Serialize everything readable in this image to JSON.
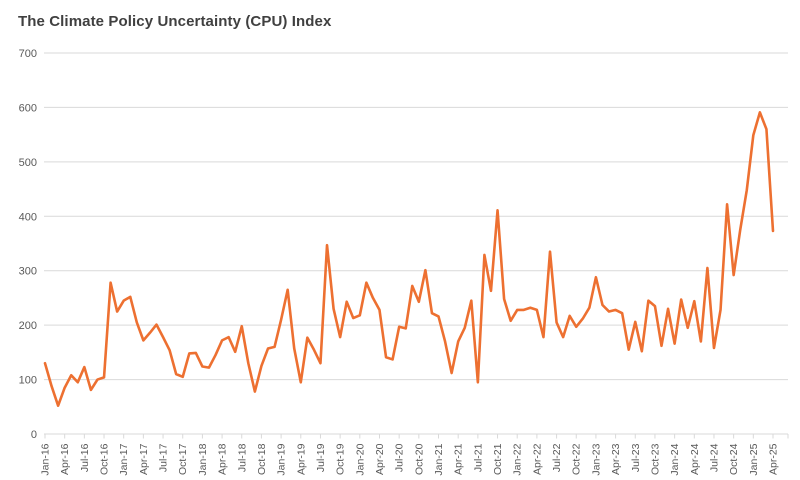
{
  "header": {
    "title": "The Climate Policy Uncertainty (CPU) Index",
    "title_color": "#404040"
  },
  "chart_data": {
    "type": "line",
    "title": "The Climate Policy Uncertainty (CPU) Index",
    "xlabel": "",
    "ylabel": "",
    "ylim": [
      0,
      700
    ],
    "y_ticks": [
      0,
      100,
      200,
      300,
      400,
      500,
      600,
      700
    ],
    "grid": "horizontal",
    "legend": "none",
    "x_frequency": "monthly",
    "x_start": "Jan-16",
    "x_end": "Apr-25",
    "x_tick_labels": [
      "Jan-16",
      "Apr-16",
      "Jul-16",
      "Oct-16",
      "Jan-17",
      "Apr-17",
      "Jul-17",
      "Oct-17",
      "Jan-18",
      "Apr-18",
      "Jul-18",
      "Oct-18",
      "Jan-19",
      "Apr-19",
      "Jul-19",
      "Oct-19",
      "Jan-20",
      "Apr-20",
      "Jul-20",
      "Oct-20",
      "Jan-21",
      "Apr-21",
      "Jul-21",
      "Oct-21",
      "Jan-22",
      "Apr-22",
      "Jul-22",
      "Oct-22",
      "Jan-23",
      "Apr-23",
      "Jul-23",
      "Oct-23",
      "Jan-24",
      "Apr-24",
      "Jul-24",
      "Oct-24",
      "Jan-25",
      "Apr-25"
    ],
    "series": [
      {
        "name": "CPU Index",
        "color": "#ED7031",
        "values": [
          130,
          88,
          52,
          85,
          108,
          95,
          123,
          81,
          100,
          104,
          278,
          225,
          245,
          252,
          205,
          172,
          186,
          201,
          178,
          154,
          110,
          105,
          148,
          149,
          124,
          122,
          145,
          172,
          178,
          151,
          198,
          130,
          78,
          125,
          157,
          160,
          210,
          265,
          157,
          95,
          177,
          155,
          130,
          347,
          230,
          178,
          243,
          213,
          218,
          278,
          250,
          228,
          141,
          137,
          197,
          194,
          272,
          243,
          301,
          222,
          216,
          170,
          112,
          170,
          195,
          245,
          95,
          329,
          263,
          411,
          248,
          208,
          228,
          228,
          232,
          228,
          178,
          335,
          205,
          178,
          217,
          197,
          212,
          232,
          288,
          237,
          225,
          228,
          222,
          155,
          206,
          152,
          245,
          235,
          162,
          230,
          166,
          247,
          195,
          244,
          170,
          305,
          158,
          228,
          422,
          292,
          375,
          448,
          549,
          591,
          560,
          373
        ]
      }
    ],
    "style": {
      "grid_color": "#d9d9d9",
      "axis_color": "#d9d9d9",
      "tick_label_color": "#595959"
    }
  }
}
